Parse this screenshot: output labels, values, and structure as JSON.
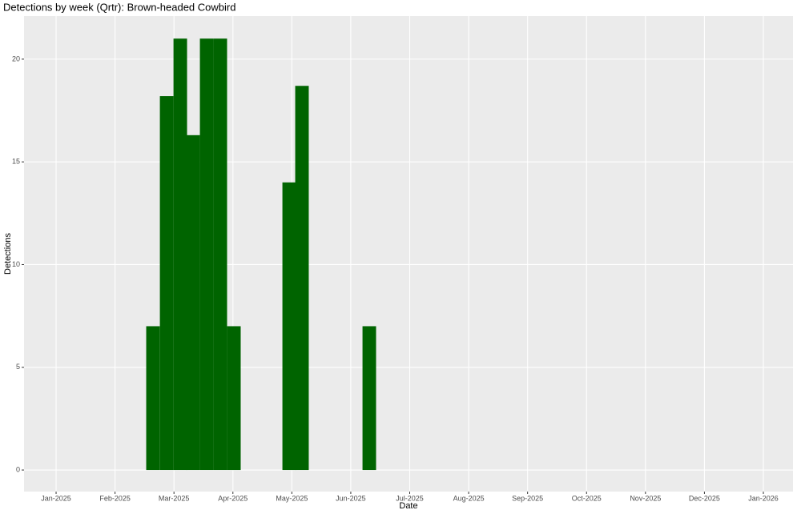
{
  "chart_data": {
    "type": "bar",
    "title": "Detections by week (Qrtr): Brown-headed Cowbird",
    "x_label": "Date",
    "y_label": "Detections",
    "x": [
      2.644,
      2.876,
      3.107,
      3.324,
      3.555,
      3.786,
      4.017,
      4.955,
      5.172,
      6.314
    ],
    "values": [
      7,
      18.2,
      21,
      16.3,
      21,
      21,
      7,
      14,
      18.7,
      7
    ],
    "bar_width": 0.23,
    "color": "#006400",
    "xlim": [
      0.456,
      13.503
    ],
    "xticks": [
      {
        "value": 1,
        "label": "Jan-2025"
      },
      {
        "value": 2,
        "label": "Feb-2025"
      },
      {
        "value": 3,
        "label": "Mar-2025"
      },
      {
        "value": 4,
        "label": "Apr-2025"
      },
      {
        "value": 5,
        "label": "May-2025"
      },
      {
        "value": 6,
        "label": "Jun-2025"
      },
      {
        "value": 7,
        "label": "Jul-2025"
      },
      {
        "value": 8,
        "label": "Aug-2025"
      },
      {
        "value": 9,
        "label": "Sep-2025"
      },
      {
        "value": 10,
        "label": "Oct-2025"
      },
      {
        "value": 11,
        "label": "Nov-2025"
      },
      {
        "value": 12,
        "label": "Dec-2025"
      },
      {
        "value": 13,
        "label": "Jan-2026"
      }
    ],
    "ylim": [
      -1.05,
      22.1
    ],
    "yticks": [
      0,
      5,
      10,
      15,
      20
    ],
    "grid": true
  }
}
